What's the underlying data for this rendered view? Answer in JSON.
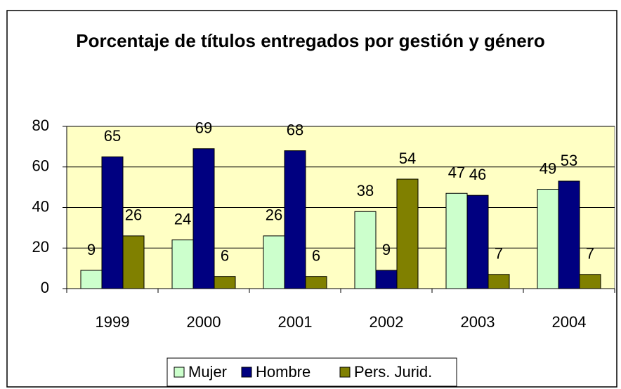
{
  "chart_data": {
    "type": "bar",
    "title": "Porcentaje de títulos entregados por gestión y género",
    "categories": [
      "1999",
      "2000",
      "2001",
      "2002",
      "2003",
      "2004"
    ],
    "series": [
      {
        "name": "Mujer",
        "color": "#ccffcc",
        "values": [
          9,
          24,
          26,
          38,
          47,
          49
        ]
      },
      {
        "name": "Hombre",
        "color": "#000080",
        "values": [
          65,
          69,
          68,
          9,
          46,
          53
        ]
      },
      {
        "name": "Pers. Jurid.",
        "color": "#808000",
        "values": [
          26,
          6,
          6,
          54,
          7,
          7
        ]
      }
    ],
    "ylim": [
      0,
      80
    ],
    "yticks": [
      0,
      20,
      40,
      60,
      80
    ],
    "grid": true,
    "legend": "bottom"
  }
}
